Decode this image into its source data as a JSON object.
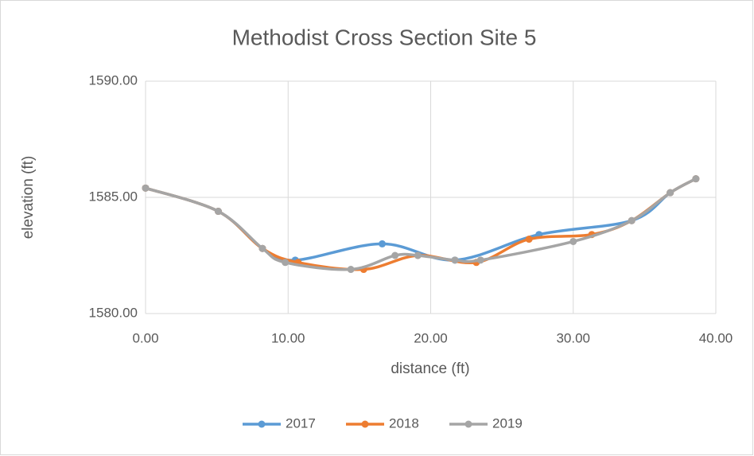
{
  "chart_data": {
    "type": "line",
    "smooth": true,
    "title": "Methodist Cross Section Site 5",
    "x_label": "distance (ft)",
    "y_label": "elevation (ft)",
    "xlim": [
      0,
      40
    ],
    "ylim": [
      1580,
      1590
    ],
    "xticks": [
      {
        "value": 0,
        "label": "0.00"
      },
      {
        "value": 10,
        "label": "10.00"
      },
      {
        "value": 20,
        "label": "20.00"
      },
      {
        "value": 30,
        "label": "30.00"
      },
      {
        "value": 40,
        "label": "40.00"
      }
    ],
    "yticks": [
      {
        "value": 1580,
        "label": "1580.00"
      },
      {
        "value": 1585,
        "label": "1585.00"
      },
      {
        "value": 1590,
        "label": "1590.00"
      }
    ],
    "grid": true,
    "legend": "bottom",
    "series": [
      {
        "name": "2017",
        "color": "#5b9bd5",
        "x": [
          0,
          5.1,
          8.2,
          10.5,
          16.6,
          21.7,
          27.6,
          34.1,
          36.8,
          38.6
        ],
        "values": [
          1585.4,
          1584.4,
          1582.8,
          1582.3,
          1583.0,
          1582.3,
          1583.4,
          1584.0,
          1585.2,
          1585.8
        ]
      },
      {
        "name": "2018",
        "color": "#ed7d31",
        "x": [
          0,
          5.1,
          8.2,
          10.7,
          15.3,
          19.1,
          23.2,
          26.9,
          31.3,
          34.1,
          36.8,
          38.6
        ],
        "values": [
          1585.4,
          1584.4,
          1582.8,
          1582.2,
          1581.9,
          1582.5,
          1582.2,
          1583.2,
          1583.4,
          1584.0,
          1585.2,
          1585.8
        ]
      },
      {
        "name": "2019",
        "color": "#a5a5a5",
        "x": [
          0,
          5.1,
          8.2,
          9.8,
          14.4,
          17.5,
          19.1,
          21.7,
          23.5,
          30.0,
          34.1,
          36.8,
          38.6
        ],
        "values": [
          1585.4,
          1584.4,
          1582.8,
          1582.2,
          1581.9,
          1582.5,
          1582.5,
          1582.3,
          1582.3,
          1583.1,
          1584.0,
          1585.2,
          1585.8
        ]
      }
    ]
  }
}
